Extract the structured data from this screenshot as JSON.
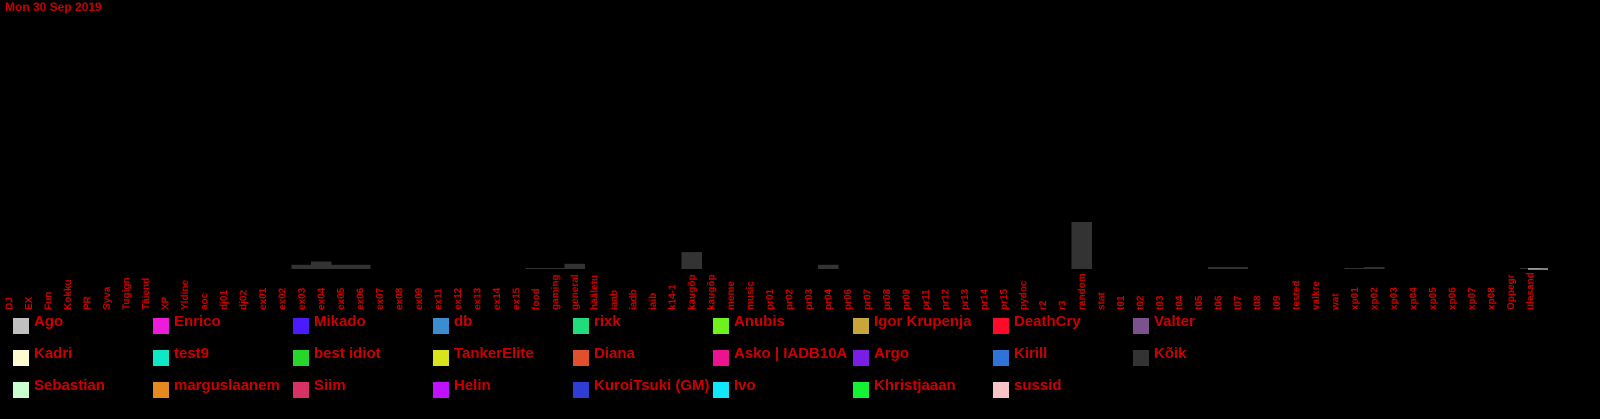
{
  "header": {
    "date": "Mon 30 Sep 2019"
  },
  "colors": {
    "text": "#cc0000",
    "background": "#000000",
    "bar": "#333333",
    "axis": "#ffffff"
  },
  "chart_data": {
    "type": "bar",
    "title": "Mon 30 Sep 2019",
    "xlabel": "",
    "ylabel": "",
    "ylim": [
      0,
      100
    ],
    "categories": [
      "DJ",
      "EX",
      "Fun",
      "Kokku",
      "PR",
      "Syva",
      "Tugign",
      "Täiend",
      "XP",
      "Yldine",
      "aoc",
      "dj01",
      "dj02",
      "ex01",
      "ex02",
      "ex03",
      "ex04",
      "ex05",
      "ex06",
      "ex07",
      "ex08",
      "ex09",
      "ex11",
      "ex12",
      "ex13",
      "ex14",
      "ex15",
      "food",
      "gaming",
      "general",
      "hääletu",
      "iaab",
      "iadb",
      "iaib",
      "k14-1",
      "kaugõp",
      "kaugõp",
      "meme",
      "music",
      "pr01",
      "pr02",
      "pr03",
      "pr04",
      "pr06",
      "pr07",
      "pr08",
      "pr09",
      "pr11",
      "pr12",
      "pr13",
      "pr14",
      "pr15",
      "pydoc",
      "r2",
      "r3",
      "random",
      "stat",
      "t01",
      "t02",
      "t03",
      "t04",
      "t05",
      "t06",
      "t07",
      "t08",
      "t09",
      "tested",
      "valkre",
      "wat",
      "xp01",
      "xp02",
      "xp03",
      "xp04",
      "xp05",
      "xp06",
      "xp07",
      "xp08",
      "Oppegr",
      "ülesand"
    ],
    "series": [
      {
        "color": "#333333",
        "values": [
          0,
          0,
          0,
          0,
          0,
          0,
          0,
          0,
          0,
          0,
          0,
          0,
          0,
          0,
          0,
          9,
          16,
          9,
          9,
          0,
          0,
          0,
          0,
          0,
          0,
          0,
          0,
          2,
          2,
          11,
          0,
          0,
          0,
          0,
          0,
          36,
          0,
          0,
          0,
          0,
          0,
          0,
          9,
          0,
          0,
          0,
          0,
          0,
          0,
          0,
          0,
          0,
          0,
          0,
          0,
          100,
          0,
          0,
          0,
          0,
          0,
          0,
          4,
          4,
          0,
          0,
          0,
          0,
          0,
          2,
          4,
          0,
          0,
          0,
          0,
          0,
          0,
          0,
          2
        ]
      }
    ],
    "legend": {
      "placement": "bottom",
      "entries": [
        {
          "name": "Ago",
          "color": "#c0c0c0"
        },
        {
          "name": "Enrico",
          "color": "#ee1cda"
        },
        {
          "name": "Mikado",
          "color": "#4b1aff"
        },
        {
          "name": "db",
          "color": "#3a8ecf"
        },
        {
          "name": "rixk",
          "color": "#1edd7a"
        },
        {
          "name": "Anubis",
          "color": "#6ef11c"
        },
        {
          "name": "Igor Krupenja",
          "color": "#c8a63a"
        },
        {
          "name": "DeathCry",
          "color": "#ff0a2a"
        },
        {
          "name": "Valter",
          "color": "#7c528e"
        },
        {
          "name": "Kadri",
          "color": "#fdfbd0"
        },
        {
          "name": "test9",
          "color": "#0ee8c6"
        },
        {
          "name": "best idiot",
          "color": "#27d52b"
        },
        {
          "name": "TankerElite",
          "color": "#d8e51c"
        },
        {
          "name": "Diana",
          "color": "#e0502c"
        },
        {
          "name": "Asko | IADB10A",
          "color": "#ec1290"
        },
        {
          "name": "Argo",
          "color": "#7a1ee6"
        },
        {
          "name": "Kirill",
          "color": "#2f72d8"
        },
        {
          "name": "Kõik",
          "color": "#333333"
        },
        {
          "name": "Sebastian",
          "color": "#c9ffcc"
        },
        {
          "name": "marguslaanem",
          "color": "#e58a1e"
        },
        {
          "name": "Siim",
          "color": "#d63266"
        },
        {
          "name": "Helin",
          "color": "#c110ff"
        },
        {
          "name": "KuroiTsuki (GM)",
          "color": "#2d3fd0"
        },
        {
          "name": "Ivo",
          "color": "#12e6fb"
        },
        {
          "name": "Khristjaaan",
          "color": "#14f234"
        },
        {
          "name": "sussid",
          "color": "#f8c4c6"
        }
      ]
    }
  }
}
